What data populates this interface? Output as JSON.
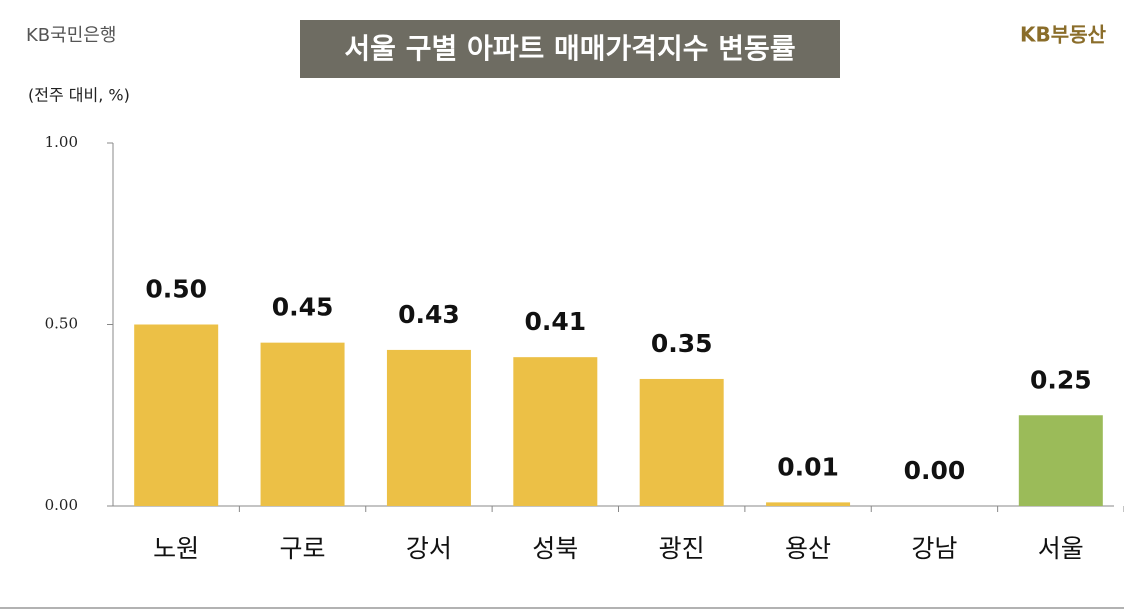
{
  "chart_data": {
    "type": "bar",
    "title": "서울 구별 아파트 매매가격지수 변동률",
    "subtitle": "(전주 대비, %)",
    "brand_left": "KB국민은행",
    "brand_right": "KB부동산",
    "categories": [
      "노원",
      "구로",
      "강서",
      "성북",
      "광진",
      "용산",
      "강남",
      "서울"
    ],
    "values": [
      0.5,
      0.45,
      0.43,
      0.41,
      0.35,
      0.01,
      0.0,
      0.25
    ],
    "value_labels": [
      "0.50",
      "0.45",
      "0.43",
      "0.41",
      "0.35",
      "0.01",
      "0.00",
      "0.25"
    ],
    "colors": [
      "#ecc046",
      "#ecc046",
      "#ecc046",
      "#ecc046",
      "#ecc046",
      "#ecc046",
      "#ecc046",
      "#9bbb59"
    ],
    "ylim": [
      0,
      1
    ],
    "yticks": [
      {
        "value": 0,
        "label": "0.00"
      },
      {
        "value": 0.5,
        "label": "0.50"
      },
      {
        "value": 1,
        "label": "1.00"
      }
    ],
    "grid": false
  }
}
